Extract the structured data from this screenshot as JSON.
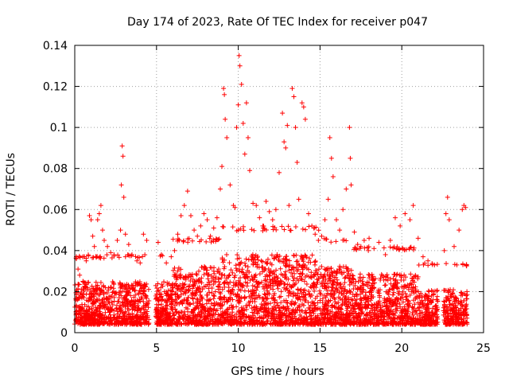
{
  "chart_data": {
    "type": "scatter",
    "title": "Day 174 of 2023, Rate Of TEC Index for receiver p047",
    "xlabel": "GPS time / hours",
    "ylabel": "ROTI / TECUs",
    "xlim": [
      0,
      25
    ],
    "ylim": [
      0,
      0.14
    ],
    "xticks": [
      0,
      5,
      10,
      15,
      20,
      25
    ],
    "yticks": [
      0,
      0.02,
      0.04,
      0.06,
      0.08,
      0.1,
      0.12,
      0.14
    ],
    "xtick_labels": [
      "0",
      "5",
      "10",
      "15",
      "20",
      "25"
    ],
    "ytick_labels": [
      "0",
      "0.02",
      "0.04",
      "0.06",
      "0.08",
      "0.1",
      "0.12",
      "0.14"
    ],
    "grid": true,
    "marker": "+",
    "color": "#ff0000",
    "series": [
      {
        "points": [
          [
            0.1,
            0.036
          ],
          [
            0.2,
            0.031
          ],
          [
            0.3,
            0.028
          ],
          [
            0.5,
            0.025
          ],
          [
            0.7,
            0.035
          ],
          [
            0.9,
            0.057
          ],
          [
            1.0,
            0.055
          ],
          [
            1.1,
            0.047
          ],
          [
            1.2,
            0.042
          ],
          [
            1.4,
            0.055
          ],
          [
            1.5,
            0.058
          ],
          [
            1.6,
            0.062
          ],
          [
            1.7,
            0.05
          ],
          [
            1.8,
            0.045
          ],
          [
            2.0,
            0.042
          ],
          [
            2.2,
            0.039
          ],
          [
            2.4,
            0.038
          ],
          [
            2.6,
            0.045
          ],
          [
            2.8,
            0.05
          ],
          [
            2.85,
            0.072
          ],
          [
            2.9,
            0.091
          ],
          [
            2.95,
            0.086
          ],
          [
            3.0,
            0.066
          ],
          [
            3.1,
            0.048
          ],
          [
            3.3,
            0.043
          ],
          [
            3.5,
            0.038
          ],
          [
            3.8,
            0.035
          ],
          [
            4.0,
            0.034
          ],
          [
            4.2,
            0.048
          ],
          [
            4.4,
            0.045
          ],
          [
            5.1,
            0.044
          ],
          [
            5.3,
            0.038
          ],
          [
            5.6,
            0.034
          ],
          [
            5.9,
            0.037
          ],
          [
            6.1,
            0.04
          ],
          [
            6.3,
            0.048
          ],
          [
            6.5,
            0.057
          ],
          [
            6.7,
            0.062
          ],
          [
            6.9,
            0.069
          ],
          [
            7.1,
            0.057
          ],
          [
            7.3,
            0.05
          ],
          [
            7.5,
            0.047
          ],
          [
            7.7,
            0.052
          ],
          [
            7.9,
            0.058
          ],
          [
            8.1,
            0.055
          ],
          [
            8.3,
            0.047
          ],
          [
            8.5,
            0.051
          ],
          [
            8.7,
            0.056
          ],
          [
            8.9,
            0.07
          ],
          [
            9.0,
            0.081
          ],
          [
            9.1,
            0.119
          ],
          [
            9.15,
            0.116
          ],
          [
            9.2,
            0.104
          ],
          [
            9.3,
            0.095
          ],
          [
            9.5,
            0.072
          ],
          [
            9.7,
            0.062
          ],
          [
            9.8,
            0.061
          ],
          [
            9.9,
            0.1
          ],
          [
            10.0,
            0.111
          ],
          [
            10.05,
            0.135
          ],
          [
            10.1,
            0.13
          ],
          [
            10.2,
            0.121
          ],
          [
            10.3,
            0.102
          ],
          [
            10.4,
            0.087
          ],
          [
            10.5,
            0.112
          ],
          [
            10.6,
            0.095
          ],
          [
            10.7,
            0.079
          ],
          [
            10.9,
            0.063
          ],
          [
            11.1,
            0.062
          ],
          [
            11.3,
            0.056
          ],
          [
            11.5,
            0.052
          ],
          [
            11.7,
            0.064
          ],
          [
            11.9,
            0.059
          ],
          [
            12.1,
            0.055
          ],
          [
            12.3,
            0.06
          ],
          [
            12.5,
            0.078
          ],
          [
            12.7,
            0.107
          ],
          [
            12.8,
            0.093
          ],
          [
            12.9,
            0.09
          ],
          [
            13.0,
            0.101
          ],
          [
            13.1,
            0.062
          ],
          [
            13.3,
            0.119
          ],
          [
            13.4,
            0.115
          ],
          [
            13.5,
            0.1
          ],
          [
            13.6,
            0.083
          ],
          [
            13.7,
            0.065
          ],
          [
            13.9,
            0.112
          ],
          [
            14.0,
            0.11
          ],
          [
            14.1,
            0.104
          ],
          [
            14.3,
            0.058
          ],
          [
            14.5,
            0.052
          ],
          [
            14.7,
            0.048
          ],
          [
            14.9,
            0.045
          ],
          [
            15.1,
            0.047
          ],
          [
            15.3,
            0.055
          ],
          [
            15.5,
            0.065
          ],
          [
            15.6,
            0.095
          ],
          [
            15.7,
            0.085
          ],
          [
            15.8,
            0.076
          ],
          [
            16.0,
            0.055
          ],
          [
            16.2,
            0.05
          ],
          [
            16.4,
            0.06
          ],
          [
            16.6,
            0.07
          ],
          [
            16.8,
            0.1
          ],
          [
            16.85,
            0.085
          ],
          [
            16.9,
            0.072
          ],
          [
            17.1,
            0.049
          ],
          [
            17.3,
            0.043
          ],
          [
            17.5,
            0.042
          ],
          [
            17.7,
            0.045
          ],
          [
            18.0,
            0.046
          ],
          [
            18.3,
            0.041
          ],
          [
            18.6,
            0.044
          ],
          [
            19.0,
            0.038
          ],
          [
            19.3,
            0.045
          ],
          [
            19.6,
            0.056
          ],
          [
            19.9,
            0.052
          ],
          [
            20.2,
            0.058
          ],
          [
            20.5,
            0.055
          ],
          [
            20.7,
            0.062
          ],
          [
            21.0,
            0.046
          ],
          [
            21.3,
            0.037
          ],
          [
            21.6,
            0.035
          ],
          [
            22.0,
            0.033
          ],
          [
            22.6,
            0.04
          ],
          [
            22.7,
            0.058
          ],
          [
            22.8,
            0.066
          ],
          [
            22.9,
            0.055
          ],
          [
            23.2,
            0.042
          ],
          [
            23.5,
            0.05
          ],
          [
            23.7,
            0.06
          ],
          [
            23.8,
            0.062
          ],
          [
            23.9,
            0.061
          ]
        ]
      }
    ]
  }
}
